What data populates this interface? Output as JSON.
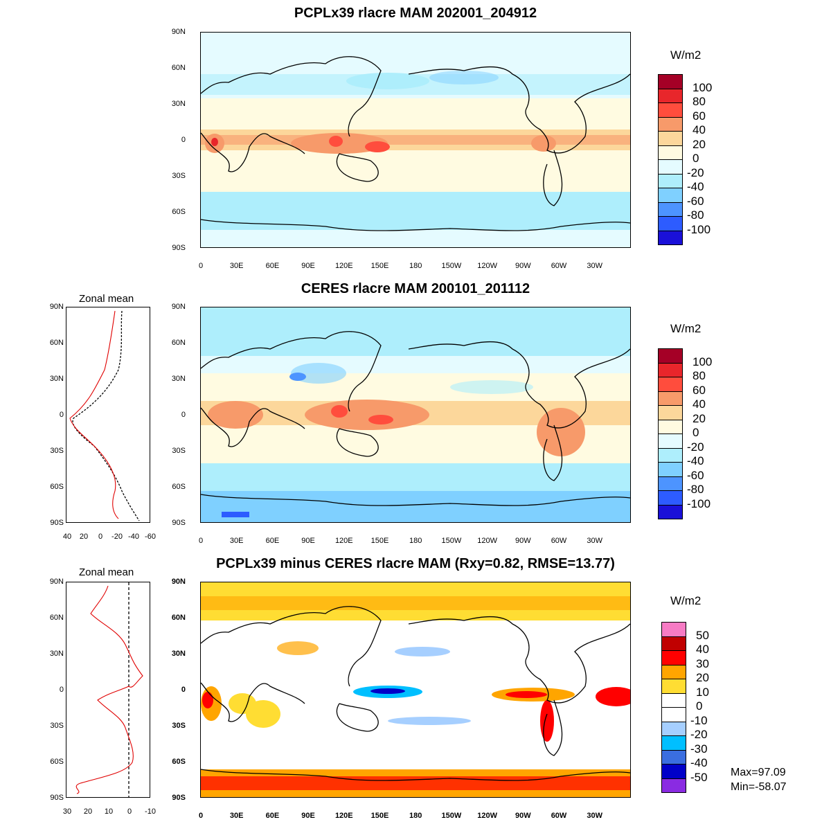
{
  "panels": [
    {
      "title": "PCPLx39 rlacre MAM 202001_204912",
      "units": "W/m2",
      "colorbar_labels": [
        "100",
        "80",
        "60",
        "40",
        "20",
        "0",
        "-20",
        "-40",
        "-60",
        "-80",
        "-100"
      ],
      "colorbar_colors": [
        "#a50026",
        "#e8262b",
        "#ff4d3d",
        "#f79a6a",
        "#fcd79b",
        "#fffbe1",
        "#e5fbff",
        "#aeeefc",
        "#7fd0ff",
        "#4d94ff",
        "#2d5cff",
        "#1a10d8"
      ]
    },
    {
      "title": "CERES rlacre MAM 200101_201112",
      "units": "W/m2",
      "colorbar_labels": [
        "100",
        "80",
        "60",
        "40",
        "20",
        "0",
        "-20",
        "-40",
        "-60",
        "-80",
        "-100"
      ],
      "colorbar_colors": [
        "#a50026",
        "#e8262b",
        "#ff4d3d",
        "#f79a6a",
        "#fcd79b",
        "#fffbe1",
        "#e5fbff",
        "#aeeefc",
        "#7fd0ff",
        "#4d94ff",
        "#2d5cff",
        "#1a10d8"
      ]
    },
    {
      "title": "PCPLx39 minus CERES rlacre MAM (Rxy=0.82, RMSE=13.77)",
      "units": "W/m2",
      "colorbar_labels": [
        "50",
        "40",
        "30",
        "20",
        "10",
        "0",
        "-10",
        "-20",
        "-30",
        "-40",
        "-50"
      ],
      "colorbar_colors": [
        "#f77bc4",
        "#c00000",
        "#ff0000",
        "#ffa500",
        "#ffdd33",
        "#ffffff",
        "#ffffff",
        "#a6cfff",
        "#00bfff",
        "#3a6ee0",
        "#0000c8",
        "#8a2be2"
      ]
    }
  ],
  "lat_labels": [
    "90N",
    "60N",
    "30N",
    "0",
    "30S",
    "60S",
    "90S"
  ],
  "lon_labels": [
    "0",
    "30E",
    "60E",
    "90E",
    "120E",
    "150E",
    "180",
    "150W",
    "120W",
    "90W",
    "60W",
    "30W"
  ],
  "zonal_mean": [
    {
      "title": "Zonal mean",
      "x_labels": [
        "40",
        "20",
        "0",
        "-20",
        "-40",
        "-60"
      ]
    },
    {
      "title": "Zonal mean",
      "x_labels": [
        "30",
        "20",
        "10",
        "0",
        "-10"
      ]
    }
  ],
  "stats": {
    "max": "Max=97.09",
    "min": "Min=-58.07"
  }
}
